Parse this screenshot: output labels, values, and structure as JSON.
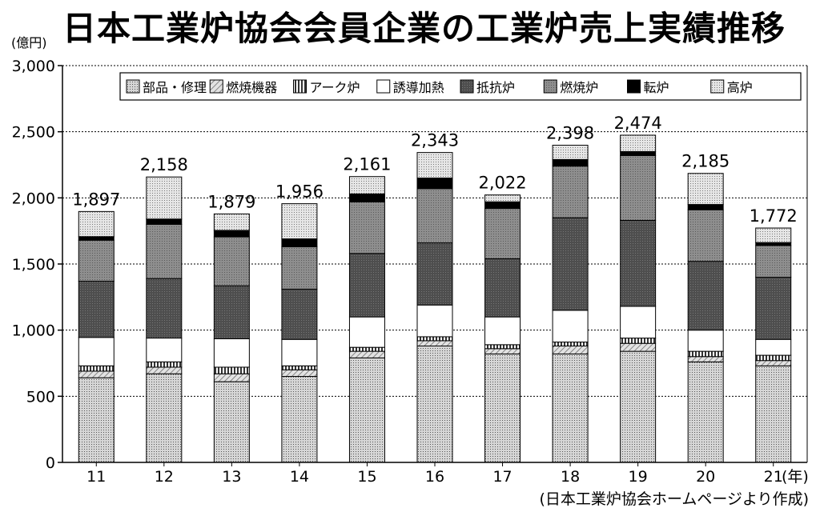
{
  "title": "日本工業炉協会会員企業の工業炉売上実績推移",
  "y_unit": "(億円)",
  "x_unit": "(年)",
  "source": "(日本工業炉協会ホームページより作成)",
  "chart_data": {
    "type": "bar",
    "stacked": true,
    "title": "日本工業炉協会会員企業の工業炉売上実績推移",
    "ylabel": "(億円)",
    "xlabel": "(年)",
    "ylim": [
      0,
      3000
    ],
    "yticks": [
      "0",
      "500",
      "1,000",
      "1,500",
      "2,000",
      "2,500",
      "3,000"
    ],
    "categories": [
      "11",
      "12",
      "13",
      "14",
      "15",
      "16",
      "17",
      "18",
      "19",
      "20",
      "21"
    ],
    "totals": [
      1897,
      2158,
      1879,
      1956,
      2161,
      2343,
      2022,
      2398,
      2474,
      2185,
      1772
    ],
    "total_labels": [
      "1,897",
      "2,158",
      "1,879",
      "1,956",
      "2,161",
      "2,343",
      "2,022",
      "2,398",
      "2,474",
      "2,185",
      "1,772"
    ],
    "legend_position": "top-right",
    "grid": "dashed horizontal",
    "series": [
      {
        "name": "部品・修理",
        "pattern": "dots",
        "values": [
          640,
          670,
          610,
          650,
          790,
          880,
          820,
          820,
          840,
          760,
          730
        ]
      },
      {
        "name": "燃焼機器",
        "pattern": "diagonal",
        "values": [
          50,
          50,
          60,
          50,
          50,
          40,
          40,
          60,
          60,
          40,
          40
        ]
      },
      {
        "name": "アーク炉",
        "pattern": "vertical",
        "values": [
          40,
          40,
          50,
          30,
          30,
          30,
          30,
          30,
          40,
          40,
          40
        ]
      },
      {
        "name": "誘導加熱",
        "pattern": "white",
        "values": [
          215,
          180,
          215,
          200,
          230,
          240,
          210,
          240,
          240,
          160,
          120
        ]
      },
      {
        "name": "抵抗炉",
        "pattern": "darkgray",
        "values": [
          425,
          450,
          400,
          380,
          480,
          470,
          440,
          700,
          650,
          520,
          470
        ]
      },
      {
        "name": "燃焼炉",
        "pattern": "midgray",
        "values": [
          310,
          410,
          370,
          320,
          390,
          410,
          380,
          390,
          490,
          390,
          240
        ]
      },
      {
        "name": "転炉",
        "pattern": "black",
        "values": [
          27,
          40,
          49,
          60,
          60,
          80,
          50,
          50,
          30,
          40,
          22
        ]
      },
      {
        "name": "高炉",
        "pattern": "lightdots",
        "values": [
          190,
          318,
          125,
          266,
          131,
          193,
          52,
          108,
          124,
          235,
          110
        ]
      }
    ]
  }
}
